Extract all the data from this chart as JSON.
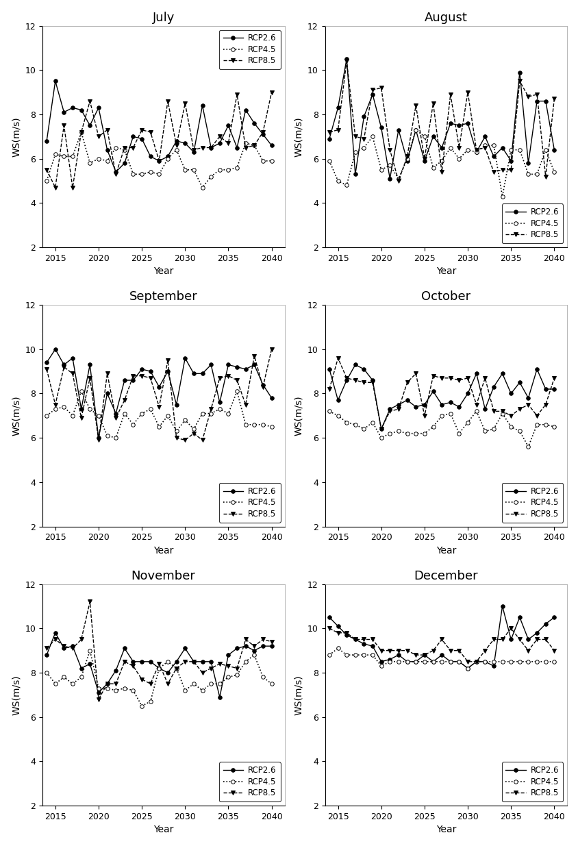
{
  "months": [
    "July",
    "August",
    "September",
    "October",
    "November",
    "December"
  ],
  "years": [
    2014,
    2015,
    2016,
    2017,
    2018,
    2019,
    2020,
    2021,
    2022,
    2023,
    2024,
    2025,
    2026,
    2027,
    2028,
    2029,
    2030,
    2031,
    2032,
    2033,
    2034,
    2035,
    2036,
    2037,
    2038,
    2039,
    2040
  ],
  "data": {
    "July": {
      "RCP2.6": [
        6.8,
        9.5,
        8.1,
        8.3,
        8.2,
        7.5,
        8.3,
        6.4,
        5.4,
        5.8,
        7.0,
        6.9,
        6.1,
        5.9,
        6.1,
        6.8,
        6.7,
        6.3,
        8.4,
        6.5,
        6.7,
        7.5,
        6.5,
        8.2,
        7.6,
        7.1,
        6.6
      ],
      "RCP4.5": [
        5.0,
        6.2,
        6.1,
        6.1,
        7.2,
        5.8,
        6.0,
        5.9,
        6.5,
        6.4,
        5.3,
        5.3,
        5.4,
        5.3,
        6.0,
        6.4,
        5.5,
        5.5,
        4.7,
        5.2,
        5.5,
        5.5,
        5.6,
        6.7,
        6.6,
        5.9,
        5.9
      ],
      "RCP8.5": [
        5.5,
        4.7,
        7.5,
        4.7,
        7.2,
        8.6,
        7.0,
        7.3,
        5.3,
        6.5,
        6.5,
        7.3,
        7.2,
        5.9,
        8.6,
        6.6,
        8.5,
        6.4,
        6.5,
        6.5,
        7.0,
        6.7,
        8.9,
        6.5,
        6.6,
        7.2,
        9.0
      ]
    },
    "August": {
      "RCP2.6": [
        6.9,
        8.3,
        10.5,
        5.3,
        7.9,
        8.9,
        7.4,
        5.1,
        7.3,
        5.9,
        7.3,
        5.9,
        7.0,
        6.5,
        7.6,
        7.5,
        7.6,
        6.3,
        7.0,
        6.1,
        6.5,
        5.9,
        9.9,
        5.8,
        8.6,
        8.6,
        6.4
      ],
      "RCP4.5": [
        5.9,
        5.0,
        4.8,
        6.3,
        6.5,
        7.0,
        5.5,
        5.7,
        5.1,
        6.0,
        7.3,
        7.0,
        5.6,
        5.9,
        6.5,
        6.0,
        6.4,
        6.3,
        6.6,
        6.6,
        4.3,
        6.4,
        6.4,
        5.3,
        5.3,
        6.4,
        5.4
      ],
      "RCP8.5": [
        7.2,
        7.3,
        10.4,
        7.0,
        6.9,
        9.1,
        9.2,
        6.4,
        5.0,
        6.1,
        8.4,
        6.0,
        8.5,
        5.4,
        8.9,
        6.5,
        9.0,
        6.4,
        6.5,
        5.4,
        5.5,
        5.5,
        9.5,
        8.8,
        8.9,
        5.2,
        8.7
      ]
    },
    "September": {
      "RCP2.6": [
        9.4,
        10.0,
        9.3,
        9.6,
        7.3,
        9.3,
        6.0,
        8.0,
        7.1,
        8.6,
        8.6,
        9.1,
        9.0,
        8.3,
        9.0,
        7.5,
        9.6,
        8.9,
        8.9,
        9.3,
        7.6,
        9.3,
        9.2,
        9.1,
        9.3,
        8.4,
        7.8
      ],
      "RCP4.5": [
        7.0,
        7.3,
        7.4,
        7.0,
        8.1,
        7.3,
        7.0,
        6.1,
        6.0,
        7.1,
        6.6,
        7.1,
        7.3,
        6.5,
        7.0,
        6.3,
        6.8,
        6.4,
        7.1,
        7.1,
        7.3,
        7.1,
        8.1,
        6.6,
        6.6,
        6.6,
        6.5
      ],
      "RCP8.5": [
        9.1,
        7.5,
        9.2,
        8.9,
        6.9,
        8.7,
        5.9,
        8.9,
        6.9,
        7.7,
        8.8,
        8.8,
        8.7,
        7.4,
        9.5,
        6.0,
        5.9,
        6.2,
        5.9,
        7.3,
        8.7,
        8.8,
        8.6,
        7.5,
        9.7,
        8.3,
        10.0
      ]
    },
    "October": {
      "RCP2.6": [
        9.1,
        7.7,
        8.6,
        9.3,
        9.1,
        8.6,
        6.4,
        7.3,
        7.5,
        7.7,
        7.4,
        7.5,
        8.1,
        7.5,
        7.6,
        7.4,
        8.0,
        8.9,
        7.3,
        8.3,
        8.9,
        8.0,
        8.5,
        7.8,
        9.1,
        8.2,
        8.2
      ],
      "RCP4.5": [
        7.2,
        7.0,
        6.7,
        6.6,
        6.4,
        6.7,
        6.0,
        6.2,
        6.3,
        6.2,
        6.2,
        6.2,
        6.5,
        7.0,
        7.1,
        6.2,
        6.7,
        7.2,
        6.3,
        6.4,
        7.1,
        6.5,
        6.3,
        5.6,
        6.6,
        6.6,
        6.5
      ],
      "RCP8.5": [
        8.2,
        9.6,
        8.7,
        8.6,
        8.5,
        8.5,
        6.4,
        7.2,
        7.3,
        8.5,
        8.9,
        7.0,
        8.8,
        8.7,
        8.7,
        8.6,
        8.7,
        7.5,
        8.7,
        7.2,
        7.2,
        7.0,
        7.3,
        7.5,
        7.0,
        7.5,
        8.7
      ]
    },
    "November": {
      "RCP2.6": [
        8.8,
        9.8,
        9.1,
        9.2,
        8.2,
        8.4,
        7.1,
        7.5,
        8.1,
        9.1,
        8.5,
        8.5,
        8.5,
        8.2,
        8.0,
        8.5,
        9.1,
        8.5,
        8.5,
        8.5,
        6.9,
        8.8,
        9.1,
        9.2,
        9.0,
        9.2,
        9.2
      ],
      "RCP4.5": [
        8.0,
        7.5,
        7.8,
        7.5,
        7.8,
        9.0,
        7.3,
        7.3,
        7.2,
        7.3,
        7.2,
        6.5,
        6.7,
        8.2,
        8.5,
        8.2,
        7.2,
        7.5,
        7.2,
        7.5,
        7.5,
        7.8,
        7.9,
        8.5,
        8.8,
        7.8,
        7.5
      ],
      "RCP8.5": [
        9.1,
        9.5,
        9.2,
        9.1,
        9.5,
        11.2,
        6.8,
        7.5,
        7.5,
        8.5,
        8.3,
        7.7,
        7.5,
        8.4,
        7.5,
        8.2,
        8.5,
        8.5,
        8.0,
        8.2,
        8.4,
        8.3,
        8.2,
        9.5,
        9.2,
        9.5,
        9.4
      ]
    },
    "December": {
      "RCP2.6": [
        10.5,
        10.1,
        9.7,
        9.5,
        9.3,
        9.2,
        8.5,
        8.6,
        8.8,
        8.5,
        8.5,
        8.8,
        8.5,
        8.8,
        8.5,
        8.5,
        8.2,
        8.5,
        8.5,
        8.3,
        11.0,
        9.5,
        10.5,
        9.5,
        9.8,
        10.2,
        10.5
      ],
      "RCP4.5": [
        8.8,
        9.1,
        8.8,
        8.8,
        8.8,
        8.8,
        8.3,
        8.5,
        8.5,
        8.5,
        8.5,
        8.5,
        8.5,
        8.5,
        8.5,
        8.5,
        8.2,
        8.5,
        8.5,
        8.5,
        8.5,
        8.5,
        8.5,
        8.5,
        8.5,
        8.5,
        8.5
      ],
      "RCP8.5": [
        10.0,
        9.8,
        9.8,
        9.5,
        9.5,
        9.5,
        9.0,
        9.0,
        9.0,
        9.0,
        8.8,
        8.8,
        9.0,
        9.5,
        9.0,
        9.0,
        8.5,
        8.5,
        9.0,
        9.5,
        9.5,
        10.0,
        9.5,
        9.0,
        9.5,
        9.5,
        9.0
      ]
    }
  },
  "legend_positions": {
    "July": "upper right",
    "August": "lower right",
    "September": "lower right",
    "October": "lower right",
    "November": "lower right",
    "December": "lower right"
  },
  "ylim": [
    2,
    12
  ],
  "yticks": [
    2,
    4,
    6,
    8,
    10,
    12
  ],
  "xlim": [
    2013.5,
    2041.5
  ],
  "xticks": [
    2015,
    2020,
    2025,
    2030,
    2035,
    2040
  ],
  "xlabel": "Year",
  "ylabel": "WS(m/s)",
  "bg_color": "#ffffff",
  "title_fontsize": 13,
  "label_fontsize": 10,
  "tick_fontsize": 9,
  "legend_fontsize": 8.5
}
